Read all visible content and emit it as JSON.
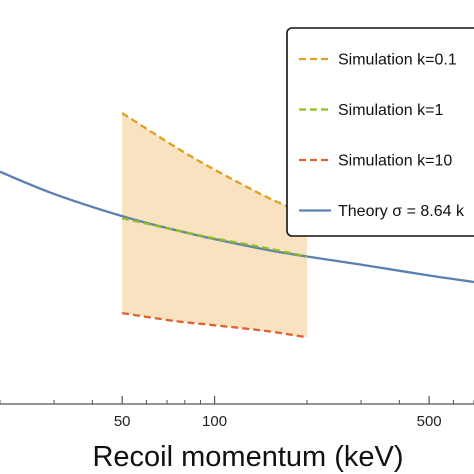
{
  "chart_data": {
    "type": "line",
    "xlabel": "Recoil momentum (keV)",
    "ylabel": "",
    "title": "",
    "x_scale": "log",
    "xlim": [
      20,
      700
    ],
    "x_ticks": [
      {
        "value": 50,
        "label": "50"
      },
      {
        "value": 100,
        "label": "100"
      },
      {
        "value": 500,
        "label": "500"
      }
    ],
    "ylim": [
      0,
      1
    ],
    "grid": false,
    "legend_position": "top-right",
    "series": [
      {
        "name": "Simulation k=0.1",
        "style": "dashed",
        "color": "#e0a020",
        "x": [
          50,
          75,
          100,
          150,
          200
        ],
        "y": [
          0.72,
          0.635,
          0.58,
          0.51,
          0.47
        ]
      },
      {
        "name": "Simulation k=1",
        "style": "dashed",
        "color": "#8cc020",
        "x": [
          50,
          75,
          100,
          150,
          200
        ],
        "y": [
          0.46,
          0.43,
          0.41,
          0.385,
          0.365
        ]
      },
      {
        "name": "Simulation k=10",
        "style": "dashed",
        "color": "#e06030",
        "x": [
          50,
          75,
          100,
          150,
          200
        ],
        "y": [
          0.225,
          0.205,
          0.195,
          0.18,
          0.165
        ]
      },
      {
        "name": "Theory σ = 8.64 k",
        "style": "solid",
        "color": "#5b7fb0",
        "x": [
          20,
          30,
          50,
          75,
          100,
          150,
          200,
          300,
          500,
          700
        ],
        "y": [
          0.575,
          0.52,
          0.465,
          0.43,
          0.408,
          0.381,
          0.365,
          0.345,
          0.318,
          0.302
        ]
      }
    ],
    "band": {
      "between": [
        "Simulation k=10",
        "Simulation k=0.1"
      ],
      "color": "#f8e2bf"
    }
  }
}
